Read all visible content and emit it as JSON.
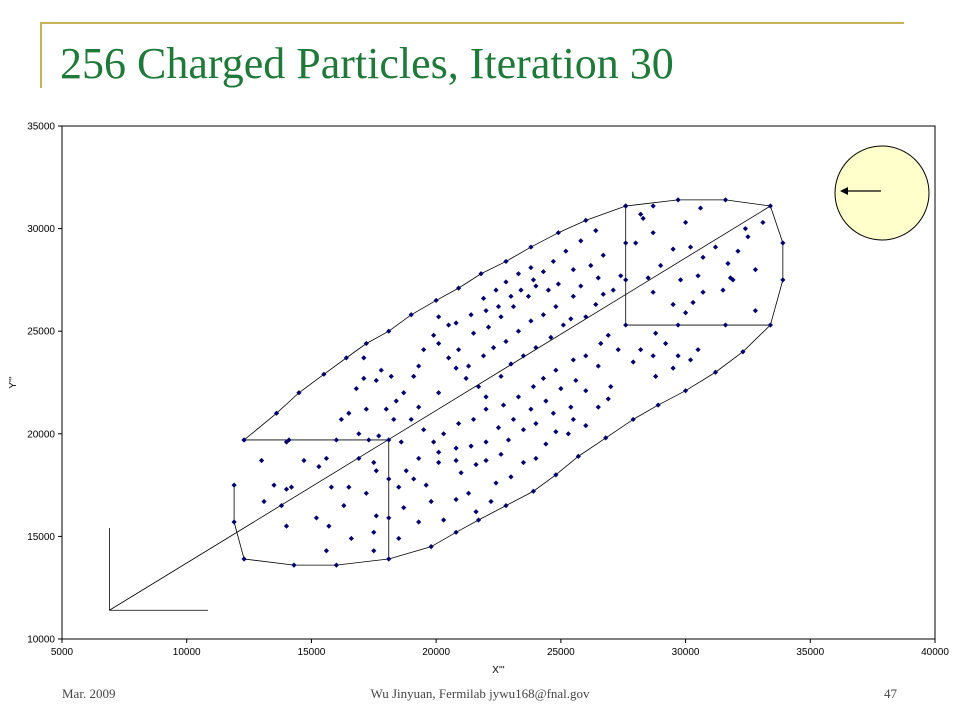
{
  "slide": {
    "title": "256 Charged Particles, Iteration 30",
    "footer_left": "Mar. 2009",
    "footer_center": "Wu Jinyuan, Fermilab jywu168@fnal.gov",
    "page_number": "47"
  },
  "colors": {
    "title": "#1f7a3a",
    "frame": "#c8b25a",
    "marker": "#00006e",
    "inset_fill": "#ffffcc"
  },
  "chart_data": {
    "type": "scatter",
    "xlabel": "X'''",
    "ylabel": "Y'''",
    "xlim": [
      5000,
      40000
    ],
    "ylim": [
      10000,
      35000
    ],
    "x_ticks": [
      "5000",
      "10000",
      "15000",
      "20000",
      "25000",
      "30000",
      "35000",
      "40000"
    ],
    "y_ticks": [
      "10000",
      "15000",
      "20000",
      "25000",
      "30000",
      "35000"
    ],
    "grid": false,
    "legend": "none",
    "points": [
      [
        12300,
        19700
      ],
      [
        13600,
        21000
      ],
      [
        14500,
        22000
      ],
      [
        15500,
        22900
      ],
      [
        16400,
        23700
      ],
      [
        17200,
        24400
      ],
      [
        18100,
        25000
      ],
      [
        19000,
        25800
      ],
      [
        20000,
        26500
      ],
      [
        20900,
        27100
      ],
      [
        21800,
        27800
      ],
      [
        22800,
        28400
      ],
      [
        23800,
        29100
      ],
      [
        24900,
        29800
      ],
      [
        26000,
        30400
      ],
      [
        27600,
        31100
      ],
      [
        29700,
        31400
      ],
      [
        31600,
        31400
      ],
      [
        33400,
        31100
      ],
      [
        33900,
        29300
      ],
      [
        33900,
        27500
      ],
      [
        33400,
        25300
      ],
      [
        32300,
        24000
      ],
      [
        31200,
        23000
      ],
      [
        30000,
        22100
      ],
      [
        28900,
        21400
      ],
      [
        27900,
        20700
      ],
      [
        26800,
        19800
      ],
      [
        25700,
        18900
      ],
      [
        24800,
        18000
      ],
      [
        23900,
        17200
      ],
      [
        22800,
        16500
      ],
      [
        21700,
        15800
      ],
      [
        20800,
        15200
      ],
      [
        19800,
        14500
      ],
      [
        18100,
        13900
      ],
      [
        16000,
        13600
      ],
      [
        14300,
        13600
      ],
      [
        12300,
        13900
      ],
      [
        11900,
        15700
      ],
      [
        11900,
        17500
      ],
      [
        12300,
        19700
      ],
      [
        14100,
        19700
      ],
      [
        16000,
        19700
      ],
      [
        18100,
        19700
      ],
      [
        18100,
        17800
      ],
      [
        18100,
        15900
      ],
      [
        27600,
        31100
      ],
      [
        27600,
        29300
      ],
      [
        27600,
        27500
      ],
      [
        27600,
        25300
      ],
      [
        29700,
        25300
      ],
      [
        31600,
        25300
      ],
      [
        13000,
        18700
      ],
      [
        13500,
        17500
      ],
      [
        14000,
        17300
      ],
      [
        14200,
        17400
      ],
      [
        13800,
        16500
      ],
      [
        13100,
        16700
      ],
      [
        14000,
        15500
      ],
      [
        15200,
        15900
      ],
      [
        15700,
        15500
      ],
      [
        15800,
        17400
      ],
      [
        16500,
        17400
      ],
      [
        16300,
        16500
      ],
      [
        17200,
        17100
      ],
      [
        17600,
        16000
      ],
      [
        17500,
        15200
      ],
      [
        16600,
        14900
      ],
      [
        15600,
        14300
      ],
      [
        17500,
        14300
      ],
      [
        14700,
        18700
      ],
      [
        15300,
        18400
      ],
      [
        15600,
        18800
      ],
      [
        16900,
        18800
      ],
      [
        17500,
        18600
      ],
      [
        17600,
        18200
      ],
      [
        17300,
        19700
      ],
      [
        14000,
        19600
      ],
      [
        18500,
        14900
      ],
      [
        19300,
        15700
      ],
      [
        19800,
        16700
      ],
      [
        20300,
        15800
      ],
      [
        20800,
        16800
      ],
      [
        21300,
        17100
      ],
      [
        21600,
        16200
      ],
      [
        22200,
        16700
      ],
      [
        22400,
        17600
      ],
      [
        23000,
        17900
      ],
      [
        23500,
        18600
      ],
      [
        24000,
        18800
      ],
      [
        24400,
        19500
      ],
      [
        24800,
        20100
      ],
      [
        25300,
        20000
      ],
      [
        25500,
        20700
      ],
      [
        26000,
        20400
      ],
      [
        26500,
        21300
      ],
      [
        26900,
        21700
      ],
      [
        27000,
        22300
      ],
      [
        26000,
        22100
      ],
      [
        25400,
        21300
      ],
      [
        24700,
        21000
      ],
      [
        24000,
        20500
      ],
      [
        23500,
        20200
      ],
      [
        22900,
        19700
      ],
      [
        22600,
        19000
      ],
      [
        22000,
        18700
      ],
      [
        21600,
        18500
      ],
      [
        21000,
        18100
      ],
      [
        20800,
        18700
      ],
      [
        20100,
        18600
      ],
      [
        19600,
        17500
      ],
      [
        19100,
        17800
      ],
      [
        18700,
        16400
      ],
      [
        18500,
        17400
      ],
      [
        18800,
        18200
      ],
      [
        19300,
        18800
      ],
      [
        19900,
        19600
      ],
      [
        20300,
        20000
      ],
      [
        20900,
        20500
      ],
      [
        21500,
        20700
      ],
      [
        22000,
        21200
      ],
      [
        22700,
        21400
      ],
      [
        23300,
        21800
      ],
      [
        23900,
        22300
      ],
      [
        24300,
        22700
      ],
      [
        24800,
        23100
      ],
      [
        25500,
        23600
      ],
      [
        26000,
        23800
      ],
      [
        26600,
        24400
      ],
      [
        26900,
        24800
      ],
      [
        26500,
        23300
      ],
      [
        25600,
        22600
      ],
      [
        25000,
        22200
      ],
      [
        24400,
        21600
      ],
      [
        23800,
        21200
      ],
      [
        23100,
        20700
      ],
      [
        22500,
        20300
      ],
      [
        22000,
        19600
      ],
      [
        21400,
        19400
      ],
      [
        20800,
        19300
      ],
      [
        20100,
        19100
      ],
      [
        19500,
        20200
      ],
      [
        19000,
        20700
      ],
      [
        18600,
        19600
      ],
      [
        18300,
        20700
      ],
      [
        18400,
        21600
      ],
      [
        18700,
        22000
      ],
      [
        19100,
        22800
      ],
      [
        19300,
        23300
      ],
      [
        19500,
        24100
      ],
      [
        19900,
        24800
      ],
      [
        20100,
        24400
      ],
      [
        20500,
        23700
      ],
      [
        20800,
        23200
      ],
      [
        21200,
        22700
      ],
      [
        21700,
        22300
      ],
      [
        22000,
        21800
      ],
      [
        22600,
        22800
      ],
      [
        23000,
        23400
      ],
      [
        23500,
        23800
      ],
      [
        24000,
        24200
      ],
      [
        24600,
        24700
      ],
      [
        25100,
        25300
      ],
      [
        25400,
        25600
      ],
      [
        26000,
        25700
      ],
      [
        26400,
        26300
      ],
      [
        26700,
        26800
      ],
      [
        27100,
        27000
      ],
      [
        27400,
        27700
      ],
      [
        26500,
        27600
      ],
      [
        25800,
        27200
      ],
      [
        25500,
        26700
      ],
      [
        24800,
        26200
      ],
      [
        24300,
        25800
      ],
      [
        23800,
        25500
      ],
      [
        23300,
        25000
      ],
      [
        22800,
        24500
      ],
      [
        22300,
        24200
      ],
      [
        21900,
        23800
      ],
      [
        21300,
        23300
      ],
      [
        20900,
        24100
      ],
      [
        20500,
        25300
      ],
      [
        20100,
        25700
      ],
      [
        20800,
        25400
      ],
      [
        21400,
        25800
      ],
      [
        22000,
        26000
      ],
      [
        22500,
        26200
      ],
      [
        23000,
        26700
      ],
      [
        23400,
        27000
      ],
      [
        23900,
        27500
      ],
      [
        24300,
        27900
      ],
      [
        24700,
        28400
      ],
      [
        25200,
        28900
      ],
      [
        25800,
        29400
      ],
      [
        26400,
        29900
      ],
      [
        26700,
        28700
      ],
      [
        26200,
        28200
      ],
      [
        25500,
        28000
      ],
      [
        24900,
        27300
      ],
      [
        24500,
        27000
      ],
      [
        23700,
        26700
      ],
      [
        23100,
        26200
      ],
      [
        22600,
        25700
      ],
      [
        22100,
        25200
      ],
      [
        21500,
        24900
      ],
      [
        21900,
        26600
      ],
      [
        22400,
        27000
      ],
      [
        22800,
        27400
      ],
      [
        23300,
        27800
      ],
      [
        23800,
        28100
      ],
      [
        24000,
        27200
      ],
      [
        17100,
        22700
      ],
      [
        17800,
        23100
      ],
      [
        17100,
        23700
      ],
      [
        16800,
        22200
      ],
      [
        17600,
        22600
      ],
      [
        17200,
        21200
      ],
      [
        16500,
        21000
      ],
      [
        16200,
        20700
      ],
      [
        16900,
        20000
      ],
      [
        17700,
        19900
      ],
      [
        18000,
        21200
      ],
      [
        18200,
        22800
      ],
      [
        19300,
        21300
      ],
      [
        20100,
        22000
      ],
      [
        28300,
        30500
      ],
      [
        28000,
        29300
      ],
      [
        28700,
        29800
      ],
      [
        29500,
        29000
      ],
      [
        30000,
        30300
      ],
      [
        30200,
        29100
      ],
      [
        30700,
        28600
      ],
      [
        30500,
        27700
      ],
      [
        29800,
        27500
      ],
      [
        29000,
        28200
      ],
      [
        28500,
        27600
      ],
      [
        28700,
        26900
      ],
      [
        29500,
        26300
      ],
      [
        30000,
        25900
      ],
      [
        30300,
        26400
      ],
      [
        30700,
        26900
      ],
      [
        31500,
        27000
      ],
      [
        31700,
        28300
      ],
      [
        32100,
        28900
      ],
      [
        32500,
        29600
      ],
      [
        32400,
        30000
      ],
      [
        33100,
        30300
      ],
      [
        32800,
        28000
      ],
      [
        32800,
        26000
      ],
      [
        31900,
        27500
      ],
      [
        30600,
        31000
      ],
      [
        28200,
        30700
      ],
      [
        31200,
        29100
      ],
      [
        31800,
        27600
      ],
      [
        28700,
        31100
      ],
      [
        28200,
        24100
      ],
      [
        28700,
        23800
      ],
      [
        29200,
        24400
      ],
      [
        29700,
        23800
      ],
      [
        30200,
        23600
      ],
      [
        30500,
        24100
      ],
      [
        28800,
        22800
      ],
      [
        29500,
        23200
      ],
      [
        28800,
        24900
      ],
      [
        27900,
        23500
      ],
      [
        27300,
        24100
      ]
    ],
    "segments": [
      [
        [
          6900,
          11400
        ],
        [
          33400,
          31100
        ]
      ],
      [
        [
          12300,
          19700
        ],
        [
          18100,
          19700
        ]
      ],
      [
        [
          18100,
          19700
        ],
        [
          18100,
          13900
        ]
      ],
      [
        [
          27600,
          31100
        ],
        [
          27600,
          25300
        ]
      ],
      [
        [
          27600,
          25300
        ],
        [
          33400,
          25300
        ]
      ]
    ],
    "inset": {
      "shape": "circle",
      "arrow": "left"
    }
  }
}
